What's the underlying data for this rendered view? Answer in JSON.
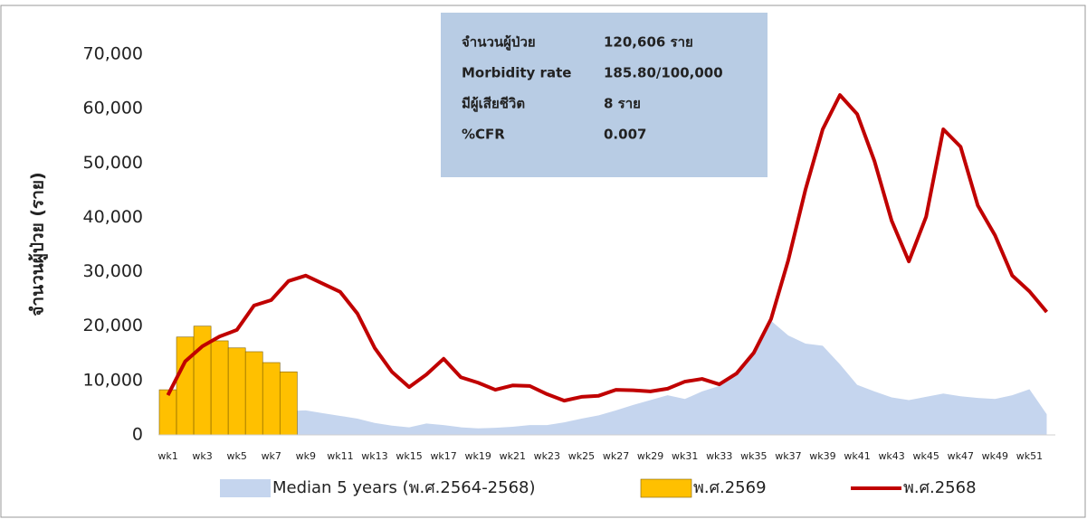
{
  "chart_data": {
    "type": "combo",
    "y_label": "จำนวนผู้ป่วย (ราย)",
    "categories": [
      "wk1",
      null,
      "wk3",
      null,
      "wk5",
      null,
      "wk7",
      null,
      "wk9",
      null,
      "wk11",
      null,
      "wk13",
      null,
      "wk15",
      null,
      "wk17",
      null,
      "wk19",
      null,
      "wk21",
      null,
      "wk23",
      null,
      "wk25",
      null,
      "wk27",
      null,
      "wk29",
      null,
      "wk31",
      null,
      "wk33",
      null,
      "wk35",
      null,
      "wk37",
      null,
      "wk39",
      null,
      "wk41",
      null,
      "wk43",
      null,
      "wk45",
      null,
      "wk47",
      null,
      "wk49",
      null,
      "wk51",
      null
    ],
    "ylim": [
      0,
      70000
    ],
    "yticks": [
      0,
      {
        "value": 10000,
        "label": "10,000"
      },
      {
        "value": 20000,
        "label": "20,000"
      },
      {
        "value": 30000,
        "label": "30,000"
      },
      {
        "value": 40000,
        "label": "40,000"
      },
      {
        "value": 50000,
        "label": "50,000"
      },
      {
        "value": 60000,
        "label": "60,000"
      },
      {
        "value": 70000,
        "label": "70,000"
      }
    ],
    "series": [
      {
        "name": "Median 5 years (พ.ศ.2564-2568)",
        "type": "area",
        "color": "#c5d5ee",
        "values": [
          null,
          null,
          null,
          null,
          null,
          null,
          null,
          4400,
          4500,
          4000,
          3500,
          3000,
          2200,
          1700,
          1400,
          2100,
          1800,
          1400,
          1200,
          1300,
          1500,
          1800,
          1800,
          2300,
          3000,
          3600,
          4500,
          5500,
          6400,
          7300,
          6600,
          8000,
          9000,
          11000,
          15000,
          21000,
          18300,
          16800,
          16400,
          13000,
          9200,
          8000,
          6900,
          6400,
          7000,
          7600,
          7100,
          6800,
          6600,
          7300,
          8400,
          3800
        ]
      },
      {
        "name": "พ.ศ.2569",
        "type": "bar",
        "color": "#ffc000",
        "values": [
          8300,
          18000,
          20000,
          17300,
          16000,
          15300,
          13300,
          11600,
          null,
          null,
          null,
          null,
          null,
          null,
          null,
          null,
          null,
          null,
          null,
          null,
          null,
          null,
          null,
          null,
          null,
          null,
          null,
          null,
          null,
          null,
          null,
          null,
          null,
          null,
          null,
          null,
          null,
          null,
          null,
          null,
          null,
          null,
          null,
          null,
          null,
          null,
          null,
          null,
          null,
          null,
          null,
          null
        ]
      },
      {
        "name": "พ.ศ.2568",
        "type": "line",
        "color": "#c00000",
        "values": [
          7300,
          13500,
          16300,
          18100,
          19300,
          23800,
          24800,
          28300,
          29300,
          27800,
          26300,
          22300,
          16000,
          11600,
          8800,
          11100,
          14000,
          10600,
          9600,
          8300,
          9100,
          9000,
          7500,
          6300,
          7000,
          7200,
          8300,
          8200,
          8000,
          8500,
          9800,
          10300,
          9300,
          11300,
          15100,
          21300,
          32100,
          45100,
          56200,
          62500,
          59000,
          50400,
          39400,
          31900,
          40100,
          56200,
          53000,
          42200,
          36700,
          29300,
          26400,
          22600
        ]
      }
    ],
    "info_box": [
      [
        "จำนวนผู้ป่วย",
        "120,606 ราย"
      ],
      [
        "Morbidity rate",
        "185.80/100,000"
      ],
      [
        "มีผู้เสียชีวิต",
        "8 ราย"
      ],
      [
        "%CFR",
        "0.007"
      ]
    ],
    "legend": "bottom"
  }
}
